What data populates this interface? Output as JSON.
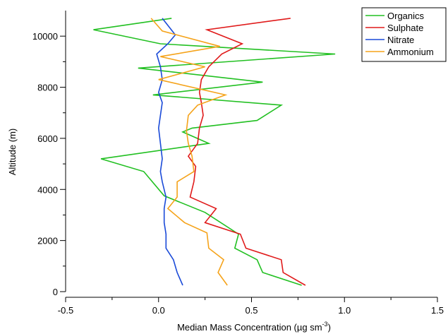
{
  "chart_data": {
    "type": "line",
    "xlabel": "Median Mass Concentration (µg sm",
    "xlabel_sup": "-3",
    "xlabel_end": ")",
    "ylabel": "Altitude (m)",
    "xlim": [
      -0.5,
      1.5
    ],
    "ylim": [
      0,
      11000
    ],
    "xticks": [
      {
        "value": -0.5,
        "label": "-0.5"
      },
      {
        "value": 0,
        "label": "0.0"
      },
      {
        "value": 0.5,
        "label": "0.5"
      },
      {
        "value": 1.0,
        "label": "1.0"
      },
      {
        "value": 1.5,
        "label": "1.5"
      }
    ],
    "yticks": [
      {
        "value": 0,
        "label": "0"
      },
      {
        "value": 2000,
        "label": "2000"
      },
      {
        "value": 4000,
        "label": "4000"
      },
      {
        "value": 6000,
        "label": "6000"
      },
      {
        "value": 8000,
        "label": "8000"
      },
      {
        "value": 10000,
        "label": "10000"
      }
    ],
    "grid": false,
    "legend_position": "top-right",
    "series": [
      {
        "name": "Organics",
        "color": "#22c022",
        "points": [
          [
            0.77,
            250
          ],
          [
            0.56,
            750
          ],
          [
            0.53,
            1250
          ],
          [
            0.41,
            1700
          ],
          [
            0.43,
            2250
          ],
          [
            0.25,
            3100
          ],
          [
            0.03,
            3750
          ],
          [
            -0.08,
            4700
          ],
          [
            -0.31,
            5200
          ],
          [
            0.27,
            5800
          ],
          [
            0.13,
            6250
          ],
          [
            0.18,
            6400
          ],
          [
            0.53,
            6700
          ],
          [
            0.66,
            7300
          ],
          [
            -0.03,
            7700
          ],
          [
            0.56,
            8200
          ],
          [
            -0.11,
            8750
          ],
          [
            0.95,
            9300
          ],
          [
            0.01,
            9700
          ],
          [
            -0.35,
            10250
          ],
          [
            0.07,
            10700
          ]
        ]
      },
      {
        "name": "Sulphate",
        "color": "#e01a1a",
        "points": [
          [
            0.79,
            250
          ],
          [
            0.67,
            750
          ],
          [
            0.66,
            1250
          ],
          [
            0.47,
            1700
          ],
          [
            0.44,
            2250
          ],
          [
            0.25,
            2700
          ],
          [
            0.31,
            3250
          ],
          [
            0.17,
            3700
          ],
          [
            0.19,
            4300
          ],
          [
            0.2,
            4900
          ],
          [
            0.16,
            5300
          ],
          [
            0.21,
            5800
          ],
          [
            0.22,
            6400
          ],
          [
            0.24,
            6900
          ],
          [
            0.23,
            7400
          ],
          [
            0.22,
            7800
          ],
          [
            0.23,
            8300
          ],
          [
            0.27,
            8800
          ],
          [
            0.34,
            9300
          ],
          [
            0.45,
            9700
          ],
          [
            0.26,
            10250
          ],
          [
            0.71,
            10700
          ]
        ]
      },
      {
        "name": "Nitrate",
        "color": "#1a4ad8",
        "points": [
          [
            0.13,
            250
          ],
          [
            0.1,
            750
          ],
          [
            0.08,
            1250
          ],
          [
            0.04,
            1700
          ],
          [
            0.04,
            2250
          ],
          [
            0.03,
            2700
          ],
          [
            0.03,
            3250
          ],
          [
            0.04,
            3700
          ],
          [
            0.02,
            4300
          ],
          [
            0.01,
            4700
          ],
          [
            0.02,
            5200
          ],
          [
            0.01,
            5800
          ],
          [
            0.0,
            6400
          ],
          [
            0.01,
            6900
          ],
          [
            0.02,
            7400
          ],
          [
            0.0,
            7800
          ],
          [
            0.02,
            8300
          ],
          [
            0.01,
            8800
          ],
          [
            -0.01,
            9300
          ],
          [
            0.05,
            9700
          ],
          [
            0.09,
            10050
          ],
          [
            0.02,
            10700
          ]
        ]
      },
      {
        "name": "Ammonium",
        "color": "#f5a31a",
        "points": [
          [
            0.37,
            250
          ],
          [
            0.32,
            750
          ],
          [
            0.35,
            1250
          ],
          [
            0.27,
            1700
          ],
          [
            0.26,
            2300
          ],
          [
            0.14,
            2700
          ],
          [
            0.05,
            3250
          ],
          [
            0.1,
            3700
          ],
          [
            0.1,
            4300
          ],
          [
            0.19,
            4700
          ],
          [
            0.18,
            5300
          ],
          [
            0.16,
            5800
          ],
          [
            0.15,
            6300
          ],
          [
            0.16,
            6900
          ],
          [
            0.21,
            7300
          ],
          [
            0.36,
            7700
          ],
          [
            0.0,
            8300
          ],
          [
            0.25,
            8800
          ],
          [
            0.01,
            9200
          ],
          [
            0.33,
            9600
          ],
          [
            0.02,
            10200
          ],
          [
            -0.04,
            10700
          ]
        ]
      }
    ]
  }
}
